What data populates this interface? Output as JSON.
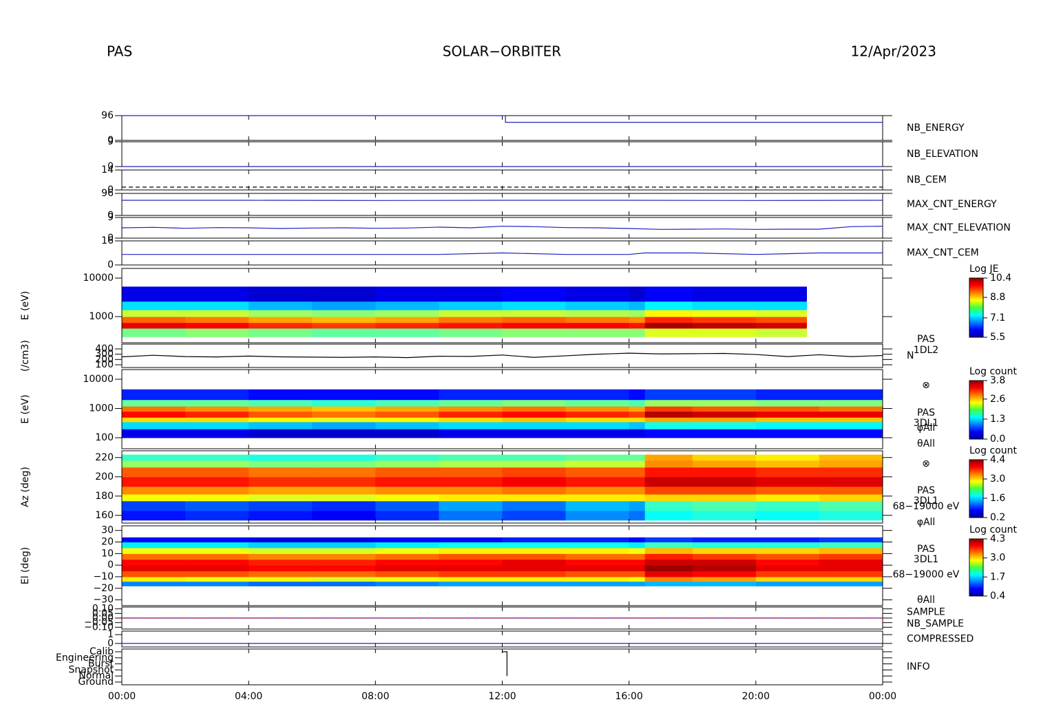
{
  "header": {
    "instrument": "PAS",
    "title": "SOLAR−ORBITER",
    "date": "12/Apr/2023"
  },
  "time_axis": {
    "xlim": [
      0,
      24
    ],
    "xticks": [
      {
        "value": 0,
        "label": "00:00"
      },
      {
        "value": 4,
        "label": "04:00"
      },
      {
        "value": 8,
        "label": "08:00"
      },
      {
        "value": 12,
        "label": "12:00"
      },
      {
        "value": 16,
        "label": "16:00"
      },
      {
        "value": 20,
        "label": "20:00"
      },
      {
        "value": 24,
        "label": "00:00"
      }
    ]
  },
  "chart_data": [
    {
      "type": "line",
      "ylim": [
        0,
        96
      ],
      "yticks": [
        0,
        96
      ],
      "series": [
        {
          "name": "NB_ENERGY",
          "color": "#2020c0",
          "x": [
            0,
            12.1,
            12.1,
            24
          ],
          "values": [
            96,
            96,
            70,
            70
          ]
        }
      ]
    },
    {
      "type": "line",
      "ylim": [
        0,
        9
      ],
      "yticks": [
        0,
        9
      ],
      "series": [
        {
          "name": "NB_ELEVATION",
          "color": "#2020c0",
          "x": [
            0,
            24
          ],
          "values": [
            0,
            0
          ]
        }
      ]
    },
    {
      "type": "line",
      "ylim": [
        0,
        14
      ],
      "yticks": [
        0,
        14
      ],
      "series": [
        {
          "name": "NB_CEM",
          "color": "#2020c0",
          "line_color": "#000000",
          "dash": true,
          "x": [
            0,
            24
          ],
          "values": [
            2,
            2
          ]
        }
      ]
    },
    {
      "type": "line",
      "ylim": [
        0,
        96
      ],
      "yticks": [
        0,
        96
      ],
      "series": [
        {
          "name": "MAX_CNT_ENERGY",
          "color": "#2020c0",
          "x": [
            0,
            4,
            8,
            12,
            16,
            20,
            24
          ],
          "values": [
            66,
            66,
            65,
            66,
            66,
            65,
            66
          ]
        }
      ]
    },
    {
      "type": "line",
      "ylim": [
        0,
        9
      ],
      "yticks": [
        0,
        9
      ],
      "series": [
        {
          "name": "MAX_CNT_ELEVATION",
          "color": "#2020c0",
          "x": [
            0,
            1,
            2,
            3,
            4,
            5,
            6,
            7,
            8,
            9,
            10,
            11,
            12,
            13,
            14,
            15,
            16,
            17,
            18,
            19,
            20,
            21,
            22,
            23,
            24
          ],
          "values": [
            4.5,
            4.7,
            4.3,
            4.6,
            4.5,
            4.2,
            4.4,
            4.5,
            4.3,
            4.4,
            4.8,
            4.5,
            5.2,
            5.0,
            4.6,
            4.5,
            4.2,
            3.8,
            3.9,
            4.0,
            3.8,
            3.9,
            3.9,
            5.0,
            5.2
          ]
        }
      ]
    },
    {
      "type": "line",
      "ylim": [
        0,
        16
      ],
      "yticks": [
        0,
        16
      ],
      "series": [
        {
          "name": "MAX_CNT_CEM",
          "color": "#2020c0",
          "x": [
            0,
            2,
            4,
            6,
            8,
            10,
            12,
            14,
            16,
            16.5,
            18,
            20,
            22,
            24
          ],
          "values": [
            7,
            7,
            7,
            7,
            7,
            7,
            8,
            7,
            7,
            8,
            8,
            7,
            8,
            8
          ]
        }
      ]
    },
    {
      "type": "heatmap",
      "ylabel": "E (eV)",
      "log": true,
      "ylim": [
        210,
        17800
      ],
      "yticks": [
        1000,
        10000
      ],
      "x_edges": [
        0,
        2,
        4,
        6,
        8,
        10,
        12,
        14,
        16,
        16.5,
        18,
        20,
        21.6
      ],
      "y_edges": [
        300,
        500,
        700,
        1000,
        1500,
        2500,
        6000
      ],
      "z": [
        [
          7.9,
          8.0,
          7.9,
          7.8,
          7.8,
          7.9,
          8.0,
          8.0,
          8.0,
          8.4,
          8.4,
          8.3
        ],
        [
          9.9,
          9.8,
          9.6,
          9.5,
          9.6,
          9.7,
          9.8,
          9.8,
          9.7,
          10.2,
          10.1,
          10.0
        ],
        [
          9.3,
          9.2,
          9.0,
          8.9,
          9.0,
          9.2,
          9.3,
          9.2,
          9.1,
          9.6,
          9.5,
          9.4
        ],
        [
          8.3,
          8.3,
          8.1,
          8.0,
          8.1,
          8.3,
          8.3,
          8.2,
          8.1,
          8.6,
          8.5,
          8.4
        ],
        [
          7.2,
          7.2,
          7.0,
          6.9,
          7.0,
          7.1,
          7.2,
          7.1,
          7.0,
          7.3,
          7.2,
          7.2
        ],
        [
          6.0,
          6.0,
          5.9,
          5.9,
          6.0,
          6.0,
          6.1,
          6.0,
          5.9,
          6.1,
          6.0,
          6.0
        ]
      ],
      "colorbar": {
        "label": "Log JE",
        "lim": [
          5.5,
          10.4
        ],
        "ticks": [
          5.5,
          7.1,
          8.8,
          10.4
        ]
      }
    },
    {
      "type": "line",
      "ylabel": "(/cm3)",
      "ylim": [
        48,
        491
      ],
      "yticks": [
        100,
        200,
        300,
        400
      ],
      "side_labels": [
        "PAS",
        "1DL2"
      ],
      "series": [
        {
          "name": "N",
          "color": "#000000",
          "x": [
            0,
            1,
            2,
            3,
            4,
            5,
            6,
            7,
            8,
            9,
            10,
            11,
            12,
            13,
            14,
            15,
            16,
            17,
            18,
            19,
            20,
            21,
            22,
            23,
            24
          ],
          "values": [
            250,
            280,
            255,
            248,
            265,
            250,
            245,
            240,
            248,
            235,
            262,
            258,
            285,
            240,
            270,
            300,
            320,
            305,
            310,
            315,
            295,
            255,
            290,
            255,
            275
          ]
        }
      ]
    },
    {
      "type": "heatmap",
      "ylabel": "E (eV)",
      "log": true,
      "ylim": [
        42,
        21400
      ],
      "yticks": [
        100,
        1000,
        10000
      ],
      "x_edges": [
        0,
        2,
        4,
        6,
        8,
        10,
        12,
        14,
        16,
        16.5,
        18,
        20,
        22,
        24
      ],
      "y_edges": [
        100,
        200,
        350,
        500,
        800,
        1200,
        2000,
        4500
      ],
      "z": [
        [
          0.4,
          0.4,
          0.3,
          0.3,
          0.3,
          0.4,
          0.4,
          0.4,
          0.4,
          0.5,
          0.5,
          0.5,
          0.5
        ],
        [
          1.3,
          1.3,
          1.2,
          1.1,
          1.2,
          1.3,
          1.3,
          1.3,
          1.2,
          1.5,
          1.5,
          1.4,
          1.4
        ],
        [
          2.5,
          2.5,
          2.4,
          2.3,
          2.4,
          2.5,
          2.6,
          2.5,
          2.5,
          2.7,
          2.7,
          2.6,
          2.6
        ],
        [
          3.3,
          3.2,
          3.0,
          2.9,
          3.0,
          3.2,
          3.3,
          3.2,
          3.1,
          3.6,
          3.5,
          3.4,
          3.4
        ],
        [
          2.9,
          2.8,
          2.7,
          2.6,
          2.7,
          2.8,
          2.9,
          2.8,
          2.7,
          3.1,
          3.0,
          3.0,
          2.9
        ],
        [
          1.8,
          1.8,
          1.7,
          1.6,
          1.7,
          1.8,
          1.9,
          1.8,
          1.7,
          2.0,
          2.0,
          1.9,
          1.9
        ],
        [
          0.6,
          0.6,
          0.5,
          0.5,
          0.5,
          0.6,
          0.6,
          0.6,
          0.5,
          0.7,
          0.7,
          0.6,
          0.6
        ]
      ],
      "colorbar": {
        "label": "Log count",
        "lim": [
          0,
          3.8
        ],
        "ticks": [
          {
            "value": 0,
            "label": "0.0"
          },
          1.3,
          2.6,
          3.8
        ]
      },
      "side_labels": [
        "⊗",
        "PAS",
        "3DL1",
        "φAll",
        "θAll"
      ]
    },
    {
      "type": "heatmap",
      "ylabel": "Az (deg)",
      "log": false,
      "ylim": [
        152,
        227
      ],
      "yticks": [
        160,
        180,
        200,
        220
      ],
      "x_edges": [
        0,
        2,
        4,
        6,
        8,
        10,
        12,
        14,
        16,
        16.5,
        18,
        20,
        22,
        24
      ],
      "y_edges": [
        155,
        165,
        175,
        182,
        190,
        200,
        210,
        217,
        223
      ],
      "z": [
        [
          0.8,
          0.9,
          0.8,
          0.7,
          0.9,
          1.2,
          1.0,
          1.3,
          1.2,
          1.8,
          1.9,
          1.8,
          1.9
        ],
        [
          1.0,
          1.1,
          1.0,
          0.9,
          1.1,
          1.4,
          1.2,
          1.5,
          1.4,
          2.0,
          2.1,
          2.0,
          2.1
        ],
        [
          2.8,
          2.8,
          2.7,
          2.7,
          2.8,
          2.9,
          2.9,
          2.9,
          2.9,
          3.0,
          3.0,
          2.9,
          3.0
        ],
        [
          3.3,
          3.3,
          3.2,
          3.2,
          3.3,
          3.3,
          3.4,
          3.3,
          3.3,
          3.6,
          3.6,
          3.5,
          3.5
        ],
        [
          3.8,
          3.8,
          3.7,
          3.7,
          3.8,
          3.8,
          3.9,
          3.8,
          3.8,
          4.1,
          4.1,
          4.0,
          4.0
        ],
        [
          3.5,
          3.5,
          3.4,
          3.4,
          3.5,
          3.5,
          3.6,
          3.5,
          3.5,
          3.8,
          3.8,
          3.7,
          3.7
        ],
        [
          2.4,
          2.4,
          2.3,
          2.3,
          2.4,
          2.5,
          2.5,
          2.6,
          2.6,
          3.3,
          3.2,
          3.1,
          3.2
        ],
        [
          2.0,
          2.0,
          1.9,
          1.9,
          2.0,
          2.1,
          2.1,
          2.2,
          2.2,
          3.2,
          3.0,
          2.9,
          3.1
        ]
      ],
      "colorbar": {
        "label": "Log count",
        "lim": [
          0.2,
          4.4
        ],
        "ticks": [
          0.2,
          1.6,
          {
            "value": 3,
            "label": "3.0"
          },
          4.4
        ]
      },
      "side_labels": [
        "⊗",
        "PAS",
        "3DL1",
        "68−19000 eV",
        "φAll"
      ]
    },
    {
      "type": "heatmap",
      "ylabel": "El (deg)",
      "log": false,
      "ylim": [
        -35,
        34
      ],
      "yticks": [
        {
          "value": -30,
          "label": "−30"
        },
        {
          "value": -20,
          "label": "−20"
        },
        {
          "value": -10,
          "label": "−10"
        },
        0,
        10,
        20,
        30
      ],
      "x_edges": [
        0,
        2,
        4,
        6,
        8,
        10,
        12,
        14,
        16,
        16.5,
        18,
        20,
        22,
        24
      ],
      "y_edges": [
        -18,
        -14,
        -10,
        -5,
        0,
        5,
        10,
        15,
        20,
        24
      ],
      "z": [
        [
          1.4,
          1.4,
          1.3,
          1.3,
          1.4,
          1.5,
          1.5,
          1.5,
          1.5,
          1.6,
          1.6,
          1.5,
          1.5
        ],
        [
          2.9,
          2.8,
          2.8,
          2.7,
          2.8,
          2.9,
          2.9,
          2.9,
          2.8,
          3.3,
          3.2,
          3.0,
          3.0
        ],
        [
          3.5,
          3.5,
          3.4,
          3.4,
          3.5,
          3.6,
          3.6,
          3.5,
          3.5,
          3.9,
          3.8,
          3.6,
          3.6
        ],
        [
          3.9,
          3.9,
          3.8,
          3.8,
          3.9,
          3.9,
          3.9,
          3.9,
          3.9,
          4.2,
          4.1,
          3.9,
          3.9
        ],
        [
          3.8,
          3.8,
          3.7,
          3.7,
          3.8,
          3.8,
          3.9,
          3.8,
          3.8,
          4.0,
          4.0,
          3.8,
          3.9
        ],
        [
          3.4,
          3.4,
          3.3,
          3.3,
          3.4,
          3.5,
          3.5,
          3.4,
          3.4,
          3.7,
          3.6,
          3.5,
          3.6
        ],
        [
          2.8,
          2.8,
          2.7,
          2.7,
          2.8,
          2.9,
          2.9,
          2.9,
          2.8,
          3.1,
          3.0,
          3.0,
          3.1
        ],
        [
          1.8,
          1.8,
          1.7,
          1.7,
          1.8,
          1.9,
          1.9,
          1.9,
          1.8,
          2.1,
          2.0,
          2.0,
          2.1
        ],
        [
          0.9,
          0.9,
          0.8,
          0.8,
          0.9,
          0.9,
          1.0,
          1.0,
          0.9,
          1.1,
          1.0,
          1.0,
          1.1
        ]
      ],
      "colorbar": {
        "label": "Log count",
        "lim": [
          0.4,
          4.3
        ],
        "ticks": [
          0.4,
          1.7,
          {
            "value": 3,
            "label": "3.0"
          },
          4.3
        ]
      },
      "side_labels": [
        "PAS",
        "3DL1",
        "68−19000 eV",
        "θAll"
      ]
    },
    {
      "type": "line",
      "ylim": [
        -0.12,
        0.12
      ],
      "yticks": [
        {
          "value": -0.1,
          "label": "−0.10"
        },
        {
          "value": -0.05,
          "label": "−0.05"
        },
        {
          "value": 0,
          "label": "0.00"
        },
        {
          "value": 0.05,
          "label": "0.05"
        },
        {
          "value": 0.1,
          "label": "0.10"
        }
      ],
      "series": [
        {
          "name": "SAMPLE",
          "color": "#2020c0",
          "x": [
            0,
            24
          ],
          "values": [
            0,
            0
          ]
        },
        {
          "name": "NB_SAMPLE",
          "color": "#e02020",
          "dash": true,
          "x": [
            0,
            24
          ],
          "values": [
            0,
            0
          ]
        }
      ]
    },
    {
      "type": "line",
      "ylim": [
        -0.4,
        1.4
      ],
      "yticks": [
        0,
        1
      ],
      "series": [
        {
          "name": "COMPRESSED",
          "color": "#2020c0",
          "x": [
            0,
            24
          ],
          "values": [
            0,
            0
          ]
        }
      ]
    },
    {
      "type": "category_line",
      "categories": [
        "Calib",
        "Engineering",
        "Burst",
        "Snapshot",
        "Normal",
        "Ground"
      ],
      "series": [
        {
          "name": "INFO",
          "color": "#2020c0",
          "line_color": "#000000",
          "x": [
            12.0,
            12.15,
            12.15
          ],
          "values": [
            "Calib",
            "Calib",
            "Normal"
          ]
        }
      ]
    }
  ]
}
